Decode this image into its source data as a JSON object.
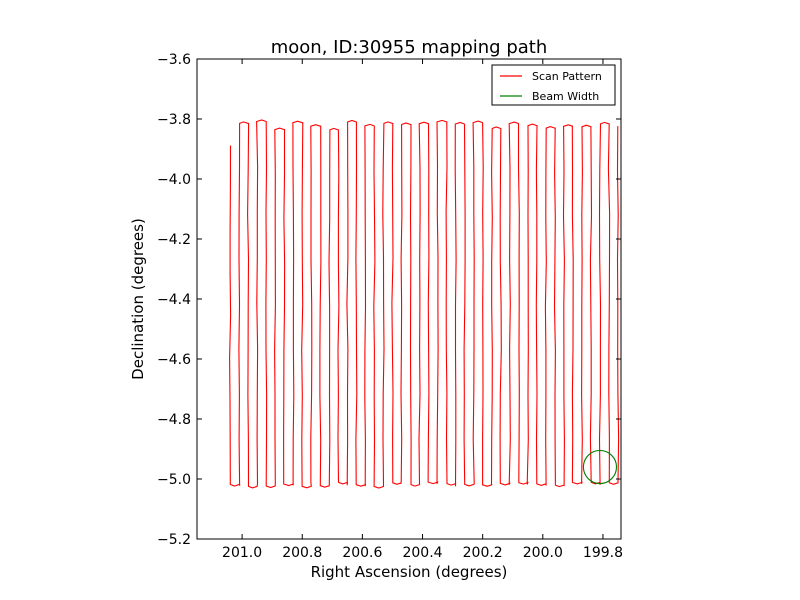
{
  "chart_data": {
    "type": "line",
    "title": "moon, ID:30955 mapping path",
    "xlabel": "Right Ascension (degrees)",
    "ylabel": "Declination (degrees)",
    "xlim": [
      201.15,
      199.74
    ],
    "ylim": [
      -5.2,
      -3.6
    ],
    "x_inverted": true,
    "xticks": [
      201.0,
      200.8,
      200.6,
      200.4,
      200.2,
      200.0,
      199.8
    ],
    "xtick_labels": [
      "201.0",
      "200.8",
      "200.6",
      "200.4",
      "200.2",
      "200.0",
      "199.8"
    ],
    "yticks": [
      -3.6,
      -3.8,
      -4.0,
      -4.2,
      -4.4,
      -4.6,
      -4.8,
      -5.0,
      -5.2
    ],
    "ytick_labels": [
      "−3.6",
      "−3.8",
      "−4.0",
      "−4.2",
      "−4.4",
      "−4.6",
      "−4.8",
      "−5.0",
      "−5.2"
    ],
    "grid": false,
    "legend_position": "top-right",
    "series": [
      {
        "name": "Scan Pattern",
        "color": "#ff0000",
        "style": "boustrophedon",
        "start_ra": 201.04,
        "end_ra": 199.75,
        "top_dec": -3.82,
        "bottom_dec": -5.01,
        "start_dec": -3.89,
        "legs": 44
      },
      {
        "name": "Beam Width",
        "color": "#008000",
        "style": "circle",
        "center_ra": 199.81,
        "center_dec": -4.96,
        "radius_deg": 0.055
      }
    ]
  }
}
